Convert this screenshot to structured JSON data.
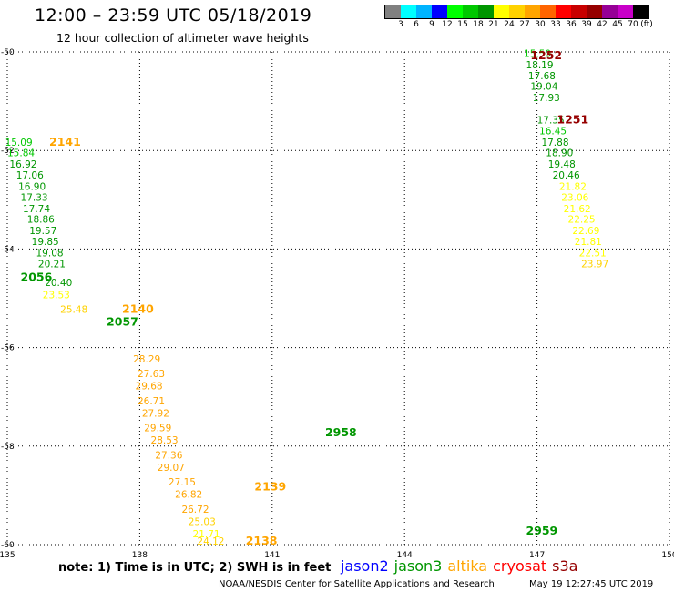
{
  "header": {
    "title": "12:00 – 23:59 UTC 05/18/2019",
    "subtitle": "12 hour collection of altimeter wave heights"
  },
  "color_scale": {
    "unit": "(ft)",
    "colors": [
      "#808080",
      "#00ffff",
      "#00b4ff",
      "#0000ff",
      "#00ff00",
      "#00c800",
      "#009600",
      "#ffff00",
      "#ffd200",
      "#ffa500",
      "#ff6400",
      "#ff0000",
      "#c80000",
      "#960000",
      "#960096",
      "#c800c8",
      "#000000"
    ],
    "labels": [
      "3",
      "6",
      "9",
      "12",
      "15",
      "18",
      "21",
      "24",
      "27",
      "30",
      "33",
      "36",
      "39",
      "42",
      "45",
      "70"
    ]
  },
  "footer": {
    "note_text": "note:  1) Time is in UTC;  2) SWH is in feet",
    "satellites": [
      {
        "name": "jason2",
        "color": "#0000ff"
      },
      {
        "name": "jason3",
        "color": "#009600"
      },
      {
        "name": "altika",
        "color": "#ffa500"
      },
      {
        "name": "cryosat",
        "color": "#ff0000"
      },
      {
        "name": "s3a",
        "color": "#960000"
      }
    ],
    "credit": "NOAA/NESDIS Center for Satellite Applications and Research",
    "timestamp": "May 19 12:27:45 UTC 2019"
  },
  "chart_data": {
    "type": "scatter",
    "xlim": [
      135,
      150
    ],
    "ylim": [
      -60.2,
      -49.9
    ],
    "x_ticks": [
      135,
      138,
      141,
      144,
      147,
      150
    ],
    "y_ticks": [
      -50,
      -52,
      -54,
      -56,
      -58,
      -60
    ],
    "x_tick_labels": [
      "135",
      "138",
      "141",
      "144",
      "147",
      "150"
    ],
    "y_tick_labels": [
      "-50",
      "-52",
      "-54",
      "-56",
      "-58",
      "-60"
    ],
    "grid": true,
    "tracks": [
      {
        "pass": "1252",
        "satellite": "s3a",
        "color": "#960000",
        "label_pos": [
          146.85,
          -50.15
        ],
        "points": [
          {
            "lon": 146.7,
            "lat": -50.1,
            "swh": "15.50",
            "color": "#00c800"
          },
          {
            "lon": 146.75,
            "lat": -50.33,
            "swh": "18.19",
            "color": "#009600"
          },
          {
            "lon": 146.8,
            "lat": -50.55,
            "swh": "17.68",
            "color": "#009600"
          },
          {
            "lon": 146.85,
            "lat": -50.77,
            "swh": "19.04",
            "color": "#009600"
          },
          {
            "lon": 146.9,
            "lat": -51.0,
            "swh": "17.93",
            "color": "#009600"
          },
          {
            "lon": 147.0,
            "lat": -51.45,
            "swh": "17.35",
            "color": "#009600"
          }
        ]
      },
      {
        "pass": "1251",
        "satellite": "s3a",
        "color": "#960000",
        "label_pos": [
          147.45,
          -51.45
        ],
        "points": [
          {
            "lon": 147.05,
            "lat": -51.67,
            "swh": "16.45",
            "color": "#00c800"
          },
          {
            "lon": 147.1,
            "lat": -51.9,
            "swh": "17.88",
            "color": "#009600"
          },
          {
            "lon": 147.2,
            "lat": -52.12,
            "swh": "18.90",
            "color": "#009600"
          },
          {
            "lon": 147.25,
            "lat": -52.35,
            "swh": "19.48",
            "color": "#009600"
          },
          {
            "lon": 147.35,
            "lat": -52.57,
            "swh": "20.46",
            "color": "#009600"
          },
          {
            "lon": 147.5,
            "lat": -52.8,
            "swh": "21.82",
            "color": "#ffff00"
          },
          {
            "lon": 147.55,
            "lat": -53.02,
            "swh": "23.06",
            "color": "#ffff00"
          },
          {
            "lon": 147.6,
            "lat": -53.25,
            "swh": "21.62",
            "color": "#ffff00"
          },
          {
            "lon": 147.7,
            "lat": -53.47,
            "swh": "22.25",
            "color": "#ffff00"
          },
          {
            "lon": 147.8,
            "lat": -53.7,
            "swh": "22.69",
            "color": "#ffff00"
          },
          {
            "lon": 147.85,
            "lat": -53.92,
            "swh": "21.81",
            "color": "#ffff00"
          },
          {
            "lon": 147.95,
            "lat": -54.15,
            "swh": "22.51",
            "color": "#ffff00"
          },
          {
            "lon": 148.0,
            "lat": -54.37,
            "swh": "23.97",
            "color": "#ffd200"
          }
        ]
      },
      {
        "pass": "2141",
        "satellite": "altika",
        "color": "#ffa500",
        "label_pos": [
          135.95,
          -51.9
        ],
        "points": [
          {
            "lon": 134.95,
            "lat": -51.9,
            "swh": "15.09",
            "color": "#00c800"
          },
          {
            "lon": 135.0,
            "lat": -52.12,
            "swh": "15.84",
            "color": "#00c800"
          },
          {
            "lon": 135.05,
            "lat": -52.35,
            "swh": "16.92",
            "color": "#009600"
          },
          {
            "lon": 135.2,
            "lat": -52.57,
            "swh": "17.06",
            "color": "#009600"
          },
          {
            "lon": 135.25,
            "lat": -52.8,
            "swh": "16.90",
            "color": "#009600"
          },
          {
            "lon": 135.3,
            "lat": -53.02,
            "swh": "17.33",
            "color": "#009600"
          },
          {
            "lon": 135.35,
            "lat": -53.25,
            "swh": "17.74",
            "color": "#009600"
          },
          {
            "lon": 135.45,
            "lat": -53.47,
            "swh": "18.86",
            "color": "#009600"
          },
          {
            "lon": 135.5,
            "lat": -53.7,
            "swh": "19.57",
            "color": "#009600"
          },
          {
            "lon": 135.55,
            "lat": -53.92,
            "swh": "19.85",
            "color": "#009600"
          },
          {
            "lon": 135.65,
            "lat": -54.15,
            "swh": "19.08",
            "color": "#009600"
          },
          {
            "lon": 135.7,
            "lat": -54.37,
            "swh": "20.21",
            "color": "#009600"
          },
          {
            "lon": 135.85,
            "lat": -54.75,
            "swh": "20.40",
            "color": "#009600"
          },
          {
            "lon": 135.8,
            "lat": -55.0,
            "swh": "23.53",
            "color": "#ffff00"
          }
        ]
      },
      {
        "pass": "2056",
        "satellite": "jason3",
        "color": "#009600",
        "label_pos": [
          135.3,
          -54.65
        ],
        "points": []
      },
      {
        "pass": "2140",
        "satellite": "altika",
        "color": "#ffa500",
        "label_pos": [
          137.6,
          -55.3
        ],
        "points": [
          {
            "lon": 136.2,
            "lat": -55.3,
            "swh": "25.48",
            "color": "#ffd200"
          }
        ]
      },
      {
        "pass": "2057",
        "satellite": "jason3",
        "color": "#009600",
        "label_pos": [
          137.25,
          -55.55
        ],
        "points": []
      },
      {
        "pass": "2139",
        "satellite": "altika",
        "color": "#ffa500",
        "label_pos": [
          140.6,
          -58.9
        ],
        "points": [
          {
            "lon": 137.85,
            "lat": -56.3,
            "swh": "28.29",
            "color": "#ffa500"
          },
          {
            "lon": 137.95,
            "lat": -56.6,
            "swh": "27.63",
            "color": "#ffa500"
          },
          {
            "lon": 137.9,
            "lat": -56.85,
            "swh": "29.68",
            "color": "#ffa500"
          },
          {
            "lon": 137.95,
            "lat": -57.15,
            "swh": "26.71",
            "color": "#ffa500"
          },
          {
            "lon": 138.05,
            "lat": -57.4,
            "swh": "27.92",
            "color": "#ffa500"
          },
          {
            "lon": 138.1,
            "lat": -57.7,
            "swh": "29.59",
            "color": "#ffa500"
          },
          {
            "lon": 138.25,
            "lat": -57.95,
            "swh": "28.53",
            "color": "#ffa500"
          },
          {
            "lon": 138.35,
            "lat": -58.25,
            "swh": "27.36",
            "color": "#ffa500"
          },
          {
            "lon": 138.4,
            "lat": -58.5,
            "swh": "29.07",
            "color": "#ffa500"
          },
          {
            "lon": 138.65,
            "lat": -58.8,
            "swh": "27.15",
            "color": "#ffa500"
          },
          {
            "lon": 138.8,
            "lat": -59.05,
            "swh": "26.82",
            "color": "#ffa500"
          },
          {
            "lon": 138.95,
            "lat": -59.35,
            "swh": "26.72",
            "color": "#ffa500"
          },
          {
            "lon": 139.1,
            "lat": -59.6,
            "swh": "25.03",
            "color": "#ffd200"
          },
          {
            "lon": 139.2,
            "lat": -59.85,
            "swh": "21.71",
            "color": "#ffff00"
          },
          {
            "lon": 139.3,
            "lat": -60.0,
            "swh": "24.12",
            "color": "#ffd200"
          }
        ]
      },
      {
        "pass": "2138",
        "satellite": "altika",
        "color": "#ffa500",
        "label_pos": [
          140.4,
          -60.0
        ],
        "points": []
      },
      {
        "pass": "2958",
        "satellite": "jason3",
        "color": "#009600",
        "label_pos": [
          142.2,
          -57.8
        ],
        "points": []
      },
      {
        "pass": "2959",
        "satellite": "jason3",
        "color": "#009600",
        "label_pos": [
          146.75,
          -59.8
        ],
        "points": []
      }
    ]
  }
}
